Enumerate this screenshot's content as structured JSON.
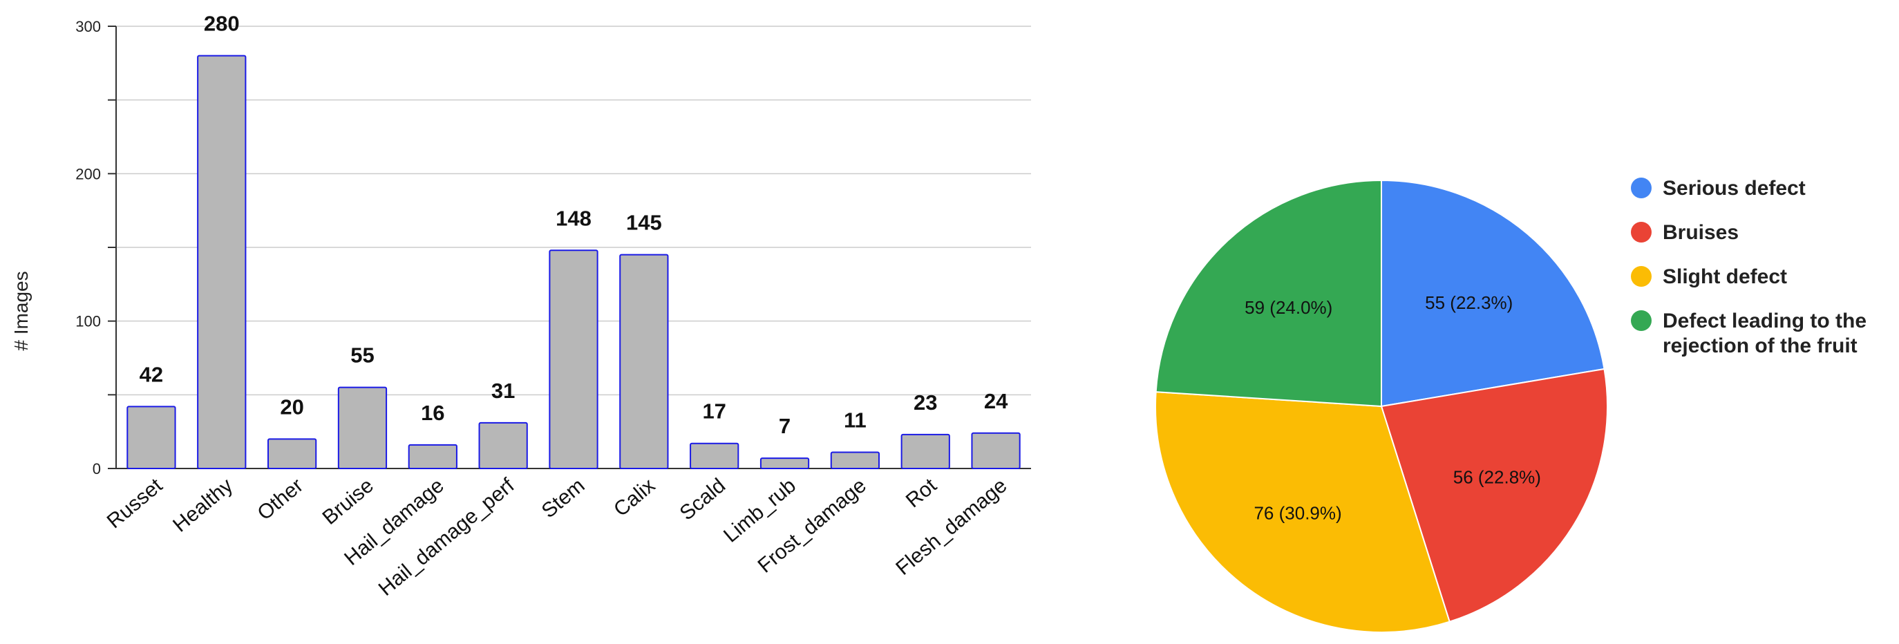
{
  "chart_data": [
    {
      "type": "bar",
      "categories": [
        "Russet",
        "Healthy",
        "Other",
        "Bruise",
        "Hail_damage",
        "Hail_damage_perf",
        "Stem",
        "Calix",
        "Scald",
        "Limb_rub",
        "Frost_damage",
        "Rot",
        "Flesh_damage"
      ],
      "values": [
        42,
        280,
        20,
        55,
        16,
        31,
        148,
        145,
        17,
        7,
        11,
        23,
        24
      ],
      "data_labels": [
        "42",
        "280",
        "20",
        "55",
        "16",
        "31",
        "148",
        "145",
        "17",
        "7",
        "11",
        "23",
        "24"
      ],
      "xlabel": "",
      "ylabel": "# Images",
      "ylim": [
        0,
        300
      ],
      "yticks": [
        "0",
        "100",
        "200",
        "300"
      ],
      "grid": true,
      "colors": {
        "bar_fill": "#b7b7b7",
        "bar_stroke": "#1a1ae6",
        "grid": "#cccccc",
        "axis": "#333333"
      }
    },
    {
      "type": "pie",
      "slices": [
        {
          "name": "Serious defect",
          "value": 55,
          "label": "55 (22.3%)",
          "color": "#4285f4"
        },
        {
          "name": "Bruises",
          "value": 56,
          "label": "56 (22.8%)",
          "color": "#ea4335"
        },
        {
          "name": "Slight defect",
          "value": 76,
          "label": "76 (30.9%)",
          "color": "#fbbc04"
        },
        {
          "name": "Defect leading to the rejection of the fruit",
          "value": 59,
          "label": "59 (24.0%)",
          "color": "#34a853"
        }
      ],
      "legend": {
        "position": "right",
        "items": [
          {
            "text": "Serious defect",
            "color": "#4285f4"
          },
          {
            "text": "Bruises",
            "color": "#ea4335"
          },
          {
            "text": "Slight defect",
            "color": "#fbbc04"
          },
          {
            "text": "Defect leading to the rejection of the fruit",
            "color": "#34a853"
          }
        ]
      }
    }
  ]
}
